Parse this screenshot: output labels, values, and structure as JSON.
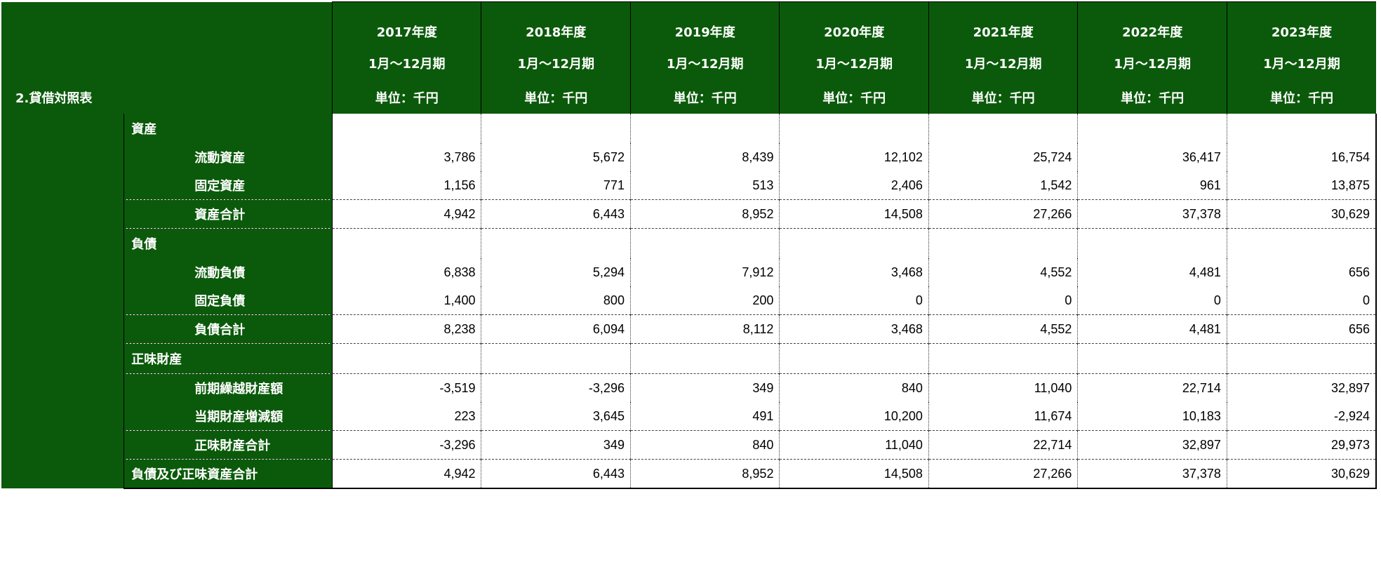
{
  "header": {
    "section_title": "2.貸借対照表",
    "period_label": "1月～12月期",
    "unit_label": "単位：千円",
    "years": [
      "2017年度",
      "2018年度",
      "2019年度",
      "2020年度",
      "2021年度",
      "2022年度",
      "2023年度"
    ]
  },
  "rows": {
    "assets_heading": "資産",
    "current_assets": {
      "label": "流動資産",
      "values": [
        "3,786",
        "5,672",
        "8,439",
        "12,102",
        "25,724",
        "36,417",
        "16,754"
      ]
    },
    "fixed_assets": {
      "label": "固定資産",
      "values": [
        "1,156",
        "771",
        "513",
        "2,406",
        "1,542",
        "961",
        "13,875"
      ]
    },
    "total_assets": {
      "label": "資産合計",
      "values": [
        "4,942",
        "6,443",
        "8,952",
        "14,508",
        "27,266",
        "37,378",
        "30,629"
      ]
    },
    "liabilities_heading": "負債",
    "current_liabilities": {
      "label": "流動負債",
      "values": [
        "6,838",
        "5,294",
        "7,912",
        "3,468",
        "4,552",
        "4,481",
        "656"
      ]
    },
    "fixed_liabilities": {
      "label": "固定負債",
      "values": [
        "1,400",
        "800",
        "200",
        "0",
        "0",
        "0",
        "0"
      ]
    },
    "total_liabilities": {
      "label": "負債合計",
      "values": [
        "8,238",
        "6,094",
        "8,112",
        "3,468",
        "4,552",
        "4,481",
        "656"
      ]
    },
    "net_assets_heading": "正味財産",
    "prior_net_assets": {
      "label": "前期繰越財産額",
      "values": [
        "-3,519",
        "-3,296",
        "349",
        "840",
        "11,040",
        "22,714",
        "32,897"
      ]
    },
    "current_change": {
      "label": "当期財産増減額",
      "values": [
        "223",
        "3,645",
        "491",
        "10,200",
        "11,674",
        "10,183",
        "-2,924"
      ]
    },
    "total_net_assets": {
      "label": "正味財産合計",
      "values": [
        "-3,296",
        "349",
        "840",
        "11,040",
        "22,714",
        "32,897",
        "29,973"
      ]
    },
    "total_liabilities_and_net_assets": {
      "label": "負債及び正味資産合計",
      "values": [
        "4,942",
        "6,443",
        "8,952",
        "14,508",
        "27,266",
        "37,378",
        "30,629"
      ]
    }
  },
  "colors": {
    "header_green": "#0b5a0b",
    "header_text": "#ffffff",
    "body_text": "#000000"
  }
}
